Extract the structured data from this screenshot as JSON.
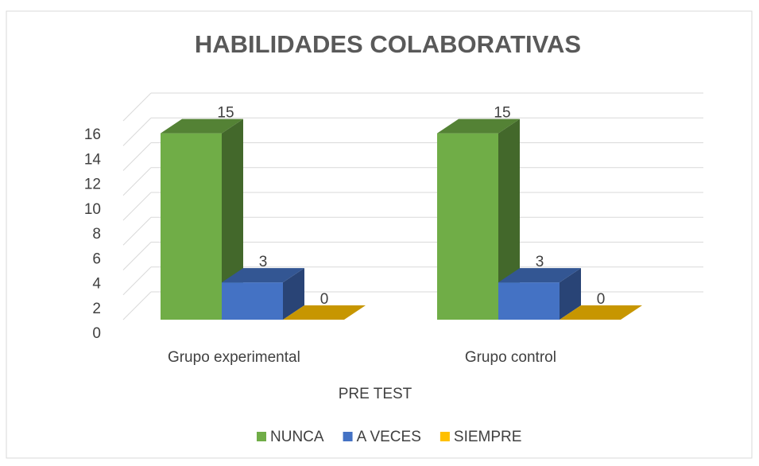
{
  "chart_data": {
    "type": "bar3d",
    "title": "HABILIDADES COLABORATIVAS",
    "x_label": "PRE TEST",
    "categories": [
      "Grupo experimental",
      "Grupo control"
    ],
    "series": [
      {
        "name": "NUNCA",
        "color": "#70ad47",
        "values": [
          15,
          15
        ]
      },
      {
        "name": "A VECES",
        "color": "#4472c4",
        "values": [
          3,
          3
        ]
      },
      {
        "name": "SIEMPRE",
        "color": "#ffc000",
        "values": [
          0,
          0
        ]
      }
    ],
    "ylim": [
      0,
      16
    ],
    "yticks": [
      0,
      2,
      4,
      6,
      8,
      10,
      12,
      14,
      16
    ],
    "grid": true,
    "legend": "bottom",
    "data_labels": true
  }
}
